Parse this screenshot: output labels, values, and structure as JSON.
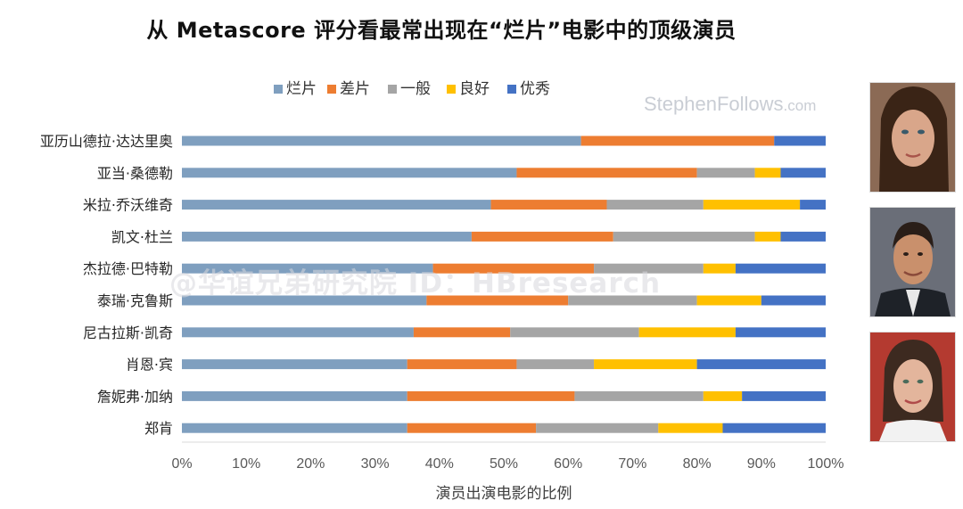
{
  "title": "从 Metascore 评分看最常出现在“烂片”电影中的顶级演员",
  "watermark": {
    "brand": "StephenFollows",
    "domain": ".com"
  },
  "overlay_watermark": "@华谊兄弟研究院 ID：HBresearch",
  "colors": {
    "烂片": "#7f9fbf",
    "差片": "#ed7d31",
    "一般": "#a5a5a5",
    "良好": "#ffc000",
    "优秀": "#4472c4"
  },
  "photos": [
    {
      "name": "female-actor-photo",
      "skin": "#d9a68a",
      "hair": "#3a2416",
      "bg": "#8b6a55",
      "shirt": "#4a3a36"
    },
    {
      "name": "male-actor-photo",
      "skin": "#c9906c",
      "hair": "#2a1e18",
      "bg": "#6a6e78",
      "shirt": "#1e2228"
    },
    {
      "name": "female-actor-photo-2",
      "skin": "#e3b59c",
      "hair": "#3d2a20",
      "bg": "#b43a30",
      "shirt": "#f2f2f2"
    }
  ],
  "chart_data": {
    "type": "bar",
    "orientation": "horizontal",
    "stacked": true,
    "title": "从 Metascore 评分看最常出现在“烂片”电影中的顶级演员",
    "xlabel": "演员出演电影的比例",
    "ylabel": "",
    "xlim": [
      0,
      100
    ],
    "x_tick_labels": [
      "0%",
      "10%",
      "20%",
      "30%",
      "40%",
      "50%",
      "60%",
      "70%",
      "80%",
      "90%",
      "100%"
    ],
    "legend_position": "top",
    "categories": [
      "亚历山德拉·达达里奥",
      "亚当·桑德勒",
      "米拉·乔沃维奇",
      "凯文·杜兰",
      "杰拉德·巴特勒",
      "泰瑞·克鲁斯",
      "尼古拉斯·凯奇",
      "肖恩·宾",
      "詹妮弗·加纳",
      "郑肯"
    ],
    "series": [
      {
        "name": "烂片",
        "values": [
          62,
          52,
          48,
          45,
          39,
          38,
          36,
          35,
          35,
          35
        ]
      },
      {
        "name": "差片",
        "values": [
          30,
          28,
          18,
          22,
          25,
          22,
          15,
          17,
          26,
          20
        ]
      },
      {
        "name": "一般",
        "values": [
          0,
          9,
          15,
          22,
          17,
          20,
          20,
          12,
          20,
          19
        ]
      },
      {
        "name": "良好",
        "values": [
          0,
          4,
          15,
          4,
          5,
          10,
          15,
          16,
          6,
          10
        ]
      },
      {
        "name": "优秀",
        "values": [
          8,
          7,
          4,
          7,
          14,
          10,
          14,
          20,
          13,
          16
        ]
      }
    ]
  }
}
